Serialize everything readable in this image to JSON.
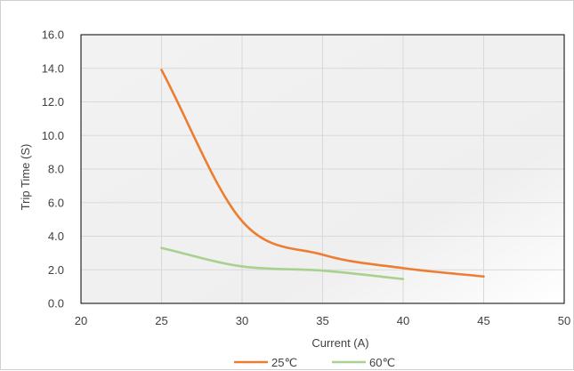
{
  "chart_data": {
    "type": "line",
    "title": "",
    "xlabel": "Current (A)",
    "ylabel": "Trip Time (S)",
    "xlim": [
      20,
      50
    ],
    "ylim": [
      0,
      16
    ],
    "xticks": [
      20,
      25,
      30,
      35,
      40,
      45,
      50
    ],
    "xtick_labels": [
      "20",
      "25",
      "30",
      "35",
      "40",
      "45",
      "50"
    ],
    "yticks": [
      0,
      2,
      4,
      6,
      8,
      10,
      12,
      14,
      16
    ],
    "ytick_labels": [
      "0.0",
      "2.0",
      "4.0",
      "6.0",
      "8.0",
      "10.0",
      "12.0",
      "14.0",
      "16.0"
    ],
    "grid": true,
    "legend_position": "bottom",
    "smooth": true,
    "series": [
      {
        "name": "25℃",
        "color": "#ed7d31",
        "x": [
          25,
          30,
          35,
          40,
          45
        ],
        "y": [
          13.9,
          4.9,
          2.9,
          2.1,
          1.6
        ]
      },
      {
        "name": "60℃",
        "color": "#a9d18e",
        "x": [
          25,
          30,
          35,
          40
        ],
        "y": [
          3.3,
          2.2,
          1.95,
          1.45
        ]
      }
    ]
  }
}
